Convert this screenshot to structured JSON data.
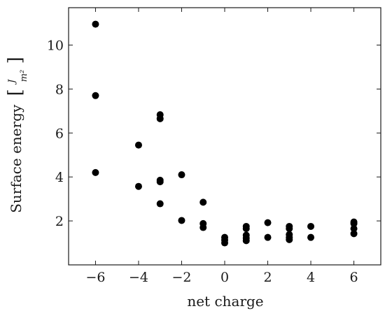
{
  "chart_data": {
    "type": "scatter",
    "title": "",
    "xlabel": "net charge",
    "ylabel": "Surface energy",
    "ylabel_unit": {
      "numerator": "J",
      "denominator": "m²"
    },
    "xlim": [
      -7.25,
      7.25
    ],
    "ylim": [
      0.0,
      11.7
    ],
    "xticks": [
      -6,
      -4,
      -2,
      0,
      2,
      4,
      6
    ],
    "xtick_labels": [
      "−6",
      "−4",
      "−2",
      "0",
      "2",
      "4",
      "6"
    ],
    "yticks": [
      2,
      4,
      6,
      8,
      10
    ],
    "ytick_labels": [
      "2",
      "4",
      "6",
      "8",
      "10"
    ],
    "grid": false,
    "marker_color": "#000000",
    "series": [
      {
        "x": [
          -6,
          -6,
          -6,
          -4,
          -4,
          -3,
          -3,
          -3,
          -3,
          -3,
          -2,
          -2,
          -1,
          -1,
          -1,
          0,
          0,
          0,
          1,
          1,
          1,
          1,
          1,
          2,
          2,
          3,
          3,
          3,
          3,
          3,
          4,
          4,
          6,
          6,
          6,
          6
        ],
        "y": [
          10.95,
          7.7,
          4.2,
          5.45,
          3.57,
          6.83,
          6.65,
          3.85,
          3.78,
          2.78,
          4.1,
          2.02,
          2.85,
          1.88,
          1.7,
          1.25,
          1.13,
          1.0,
          1.75,
          1.65,
          1.35,
          1.22,
          1.1,
          1.92,
          1.25,
          1.75,
          1.65,
          1.38,
          1.25,
          1.15,
          1.75,
          1.25,
          1.95,
          1.88,
          1.65,
          1.42
        ]
      }
    ]
  }
}
